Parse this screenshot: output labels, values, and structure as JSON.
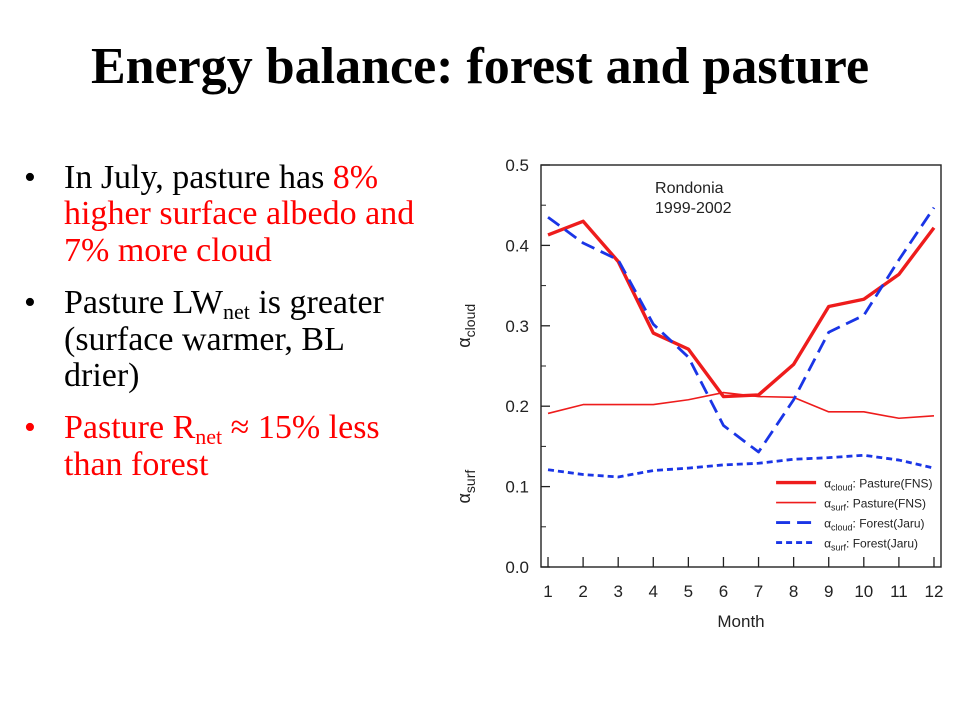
{
  "slide": {
    "title": "Energy balance: forest and pasture",
    "bullets": [
      {
        "pre": "In July, pasture has ",
        "red": "8% higher surface albedo and 7% more cloud"
      },
      {
        "text1": "Pasture LW",
        "sub": "net",
        "text2": " is greater (surface warmer, BL drier)"
      },
      {
        "text1": "Pasture R",
        "sub": "net",
        "text2": " ≈ 15% less than forest"
      }
    ]
  },
  "chart_data": {
    "type": "line",
    "annotation": [
      "Rondonia",
      "1999-2002"
    ],
    "xlabel": "Month",
    "ylabel_top": {
      "symbol": "α",
      "sub": "cloud"
    },
    "ylabel_bottom": {
      "symbol": "α",
      "sub": "surf"
    },
    "x": [
      1,
      2,
      3,
      4,
      5,
      6,
      7,
      8,
      9,
      10,
      11,
      12
    ],
    "xlim": [
      0.8,
      12.2
    ],
    "ylim": [
      0.0,
      0.5
    ],
    "yticks": [
      "0.0",
      "0.1",
      "0.2",
      "0.3",
      "0.4",
      "0.5"
    ],
    "xticks": [
      "1",
      "2",
      "3",
      "4",
      "5",
      "6",
      "7",
      "8",
      "9",
      "10",
      "11",
      "12"
    ],
    "legend_position": "bottom-right",
    "series": [
      {
        "symbol": "α",
        "sub": "cloud",
        "name": ": Pasture(FNS)",
        "color": "#ee1c1c",
        "style": "solid-thick",
        "values": [
          0.413,
          0.43,
          0.38,
          0.291,
          0.271,
          0.212,
          0.214,
          0.252,
          0.324,
          0.333,
          0.364,
          0.422
        ]
      },
      {
        "symbol": "α",
        "sub": "surf",
        "name": ": Pasture(FNS)",
        "color": "#ee1c1c",
        "style": "solid-thin",
        "values": [
          0.191,
          0.202,
          0.202,
          0.202,
          0.208,
          0.217,
          0.212,
          0.211,
          0.193,
          0.193,
          0.185,
          0.188
        ]
      },
      {
        "symbol": "α",
        "sub": "cloud",
        "name": ": Forest(Jaru)",
        "color": "#1a35e6",
        "style": "long-dash",
        "values": [
          0.435,
          0.403,
          0.382,
          0.302,
          0.261,
          0.176,
          0.143,
          0.208,
          0.292,
          0.313,
          0.382,
          0.447
        ]
      },
      {
        "symbol": "α",
        "sub": "surf",
        "name": ": Forest(Jaru)",
        "color": "#1a35e6",
        "style": "short-dash",
        "values": [
          0.121,
          0.115,
          0.112,
          0.12,
          0.123,
          0.127,
          0.129,
          0.134,
          0.136,
          0.139,
          0.133,
          0.123
        ]
      }
    ]
  }
}
